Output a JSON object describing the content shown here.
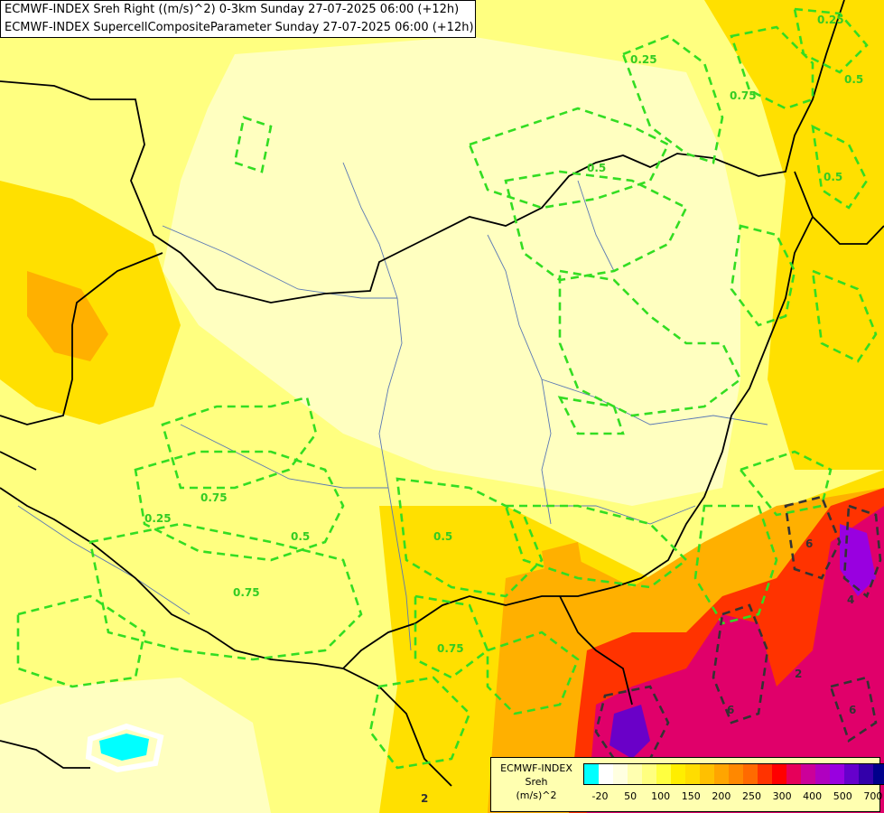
{
  "titles": [
    "ECMWF-INDEX Sreh Right ((m/s)^2) 0-3km Sunday 27-07-2025 06:00 (+12h)",
    "ECMWF-INDEX SupercellCompositeParameter Sunday 27-07-2025 06:00 (+12h)"
  ],
  "legend": {
    "line1": "ECMWF-INDEX",
    "line2": "Sreh",
    "line3": "(m/s)^2",
    "colors": [
      "#00ffff",
      "#ffffff",
      "#ffffe0",
      "#ffffb0",
      "#ffff80",
      "#ffff40",
      "#ffee00",
      "#ffdd00",
      "#ffc000",
      "#ffa500",
      "#ff8800",
      "#ff6a00",
      "#ff3300",
      "#ff0000",
      "#e6005a",
      "#cc0099",
      "#b000c0",
      "#9900e0",
      "#6600cc",
      "#3300aa",
      "#00008b"
    ],
    "ticks": [
      "-20",
      "50",
      "100",
      "150",
      "200",
      "250",
      "300",
      "400",
      "500",
      "700"
    ]
  },
  "contour_labels": [
    "0.25",
    "0.5",
    "0.75",
    "0.25",
    "0.5",
    "0.75",
    "0.5",
    "0.25",
    "0.75",
    "0.5",
    "0.75",
    "0.5",
    "6",
    "4",
    "2",
    "6",
    "6",
    "2"
  ],
  "palette": {
    "pale": "#ffffc0",
    "yellow": "#ffff80",
    "gold": "#ffe000",
    "orange": "#ffb000",
    "red": "#ff3000",
    "crimson": "#e0006a",
    "purple": "#6a00c8",
    "cyan": "#00ffff",
    "contour": "#33dd22"
  }
}
